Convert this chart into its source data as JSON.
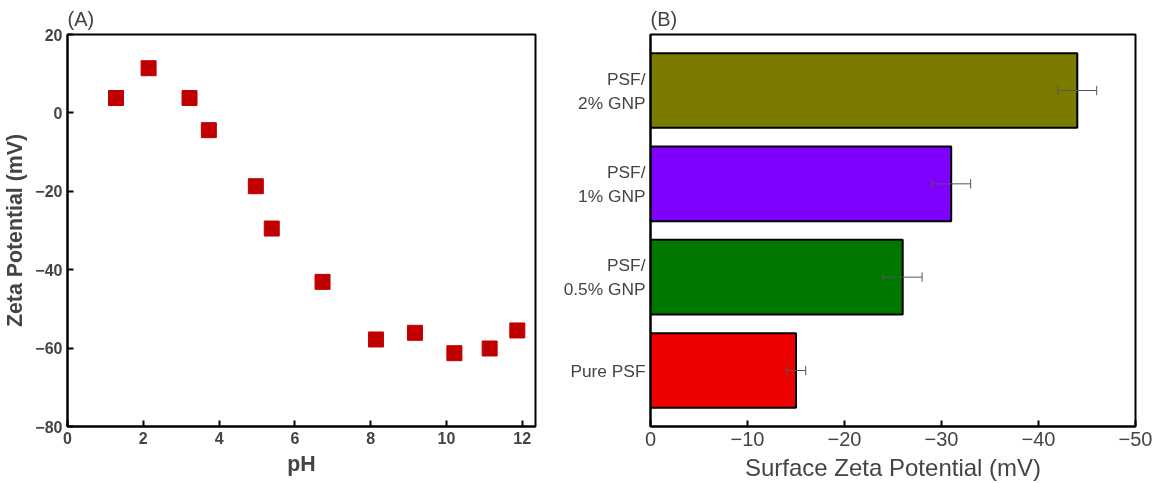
{
  "chart_data": [
    {
      "type": "scatter",
      "title": "(A)",
      "xlabel": "pH",
      "ylabel": "Zeta Potential (mV)",
      "marker": "square",
      "grid": false,
      "xlim": [
        0,
        12.35
      ],
      "xticks": [
        0,
        2,
        4,
        6,
        8,
        10,
        12
      ],
      "ylim": [
        -80,
        20
      ],
      "yticks": [
        -80,
        -60,
        -40,
        -20,
        0,
        20
      ],
      "series": [
        {
          "color": "#c00000",
          "x": [
            1.28,
            2.14,
            3.22,
            3.73,
            4.97,
            5.39,
            6.73,
            8.14,
            9.17,
            10.21,
            11.14,
            11.87
          ],
          "values": [
            3.8,
            11.4,
            3.8,
            -4.4,
            -18.7,
            -29.5,
            -43.1,
            -57.8,
            -56.1,
            -61.3,
            -60.1,
            -55.5
          ]
        }
      ]
    },
    {
      "type": "bar",
      "orientation": "horizontal",
      "title": "(B)",
      "xlabel": "Surface Zeta Potential (mV)",
      "grid": false,
      "xlim": [
        0,
        -50
      ],
      "xticks": [
        0,
        -10,
        -20,
        -30,
        -40,
        -50
      ],
      "categories": [
        "PSF/\n2% GNP",
        "PSF/\n1% GNP",
        "PSF/\n0.5% GNP",
        "Pure PSF"
      ],
      "values": [
        -44,
        -31,
        -26,
        -15
      ],
      "errors": [
        2,
        2,
        2,
        1
      ],
      "colors": [
        "#7b7b00",
        "#7f00ff",
        "#007800",
        "#ee0000"
      ]
    }
  ]
}
